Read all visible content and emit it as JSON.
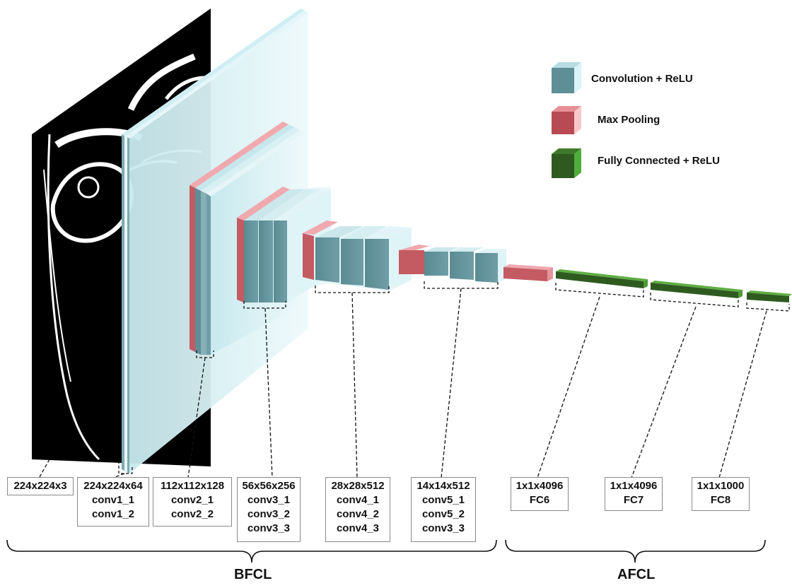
{
  "colors": {
    "conv": "#5e8e96",
    "conv_light": "#cfe9ee",
    "pool": "#c45a62",
    "pool_light": "#f3c3c6",
    "fc": "#2e5a20",
    "fc_light": "#5fae44",
    "sheet": "#d9f0f3"
  },
  "legend": [
    {
      "label": "Convolution + ReLU",
      "icon": "conv-cube-icon"
    },
    {
      "label": "Max Pooling",
      "icon": "pool-cube-icon"
    },
    {
      "label": "Fully Connected + ReLU",
      "icon": "fc-cube-icon"
    }
  ],
  "layers": [
    {
      "lines": [
        "224x224x3"
      ]
    },
    {
      "lines": [
        "224x224x64",
        "conv1_1",
        "conv1_2"
      ]
    },
    {
      "lines": [
        "112x112x128",
        "conv2_1",
        "conv2_2"
      ]
    },
    {
      "lines": [
        "56x56x256",
        "conv3_1",
        "conv3_2",
        "conv3_3"
      ]
    },
    {
      "lines": [
        "28x28x512",
        "conv4_1",
        "conv4_2",
        "conv4_3"
      ]
    },
    {
      "lines": [
        "14x14x512",
        "conv5_1",
        "conv5_2",
        "conv3_3"
      ]
    },
    {
      "lines": [
        "1x1x4096",
        "FC6"
      ]
    },
    {
      "lines": [
        "1x1x4096",
        "FC7"
      ]
    },
    {
      "lines": [
        "1x1x1000",
        "FC8"
      ]
    }
  ],
  "groups": [
    {
      "label": "BFCL"
    },
    {
      "label": "AFCL"
    }
  ]
}
